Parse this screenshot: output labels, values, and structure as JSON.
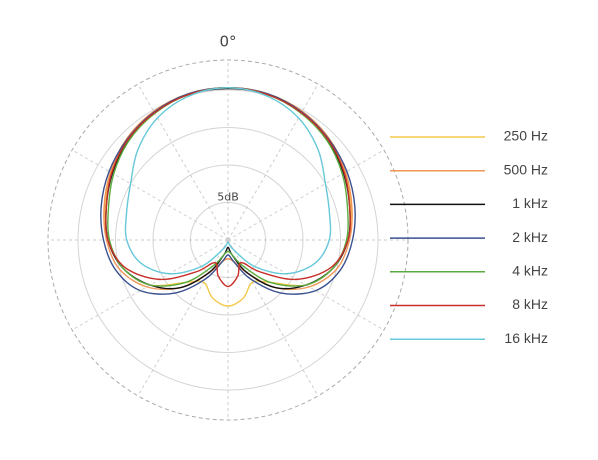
{
  "chart_data": {
    "type": "polar",
    "rlim": [
      0,
      24
    ],
    "rticks": [
      {
        "value": 5,
        "label": "5dB"
      },
      {
        "value": 10,
        "label": null
      },
      {
        "value": 15,
        "label": null
      },
      {
        "value": 20,
        "label": null
      }
    ],
    "thetaticks": [
      {
        "value": 0,
        "label": "0°"
      },
      {
        "value": 30,
        "label": null
      },
      {
        "value": 60,
        "label": null
      },
      {
        "value": 90,
        "label": null
      },
      {
        "value": 120,
        "label": null
      },
      {
        "value": 150,
        "label": null
      },
      {
        "value": 180,
        "label": null
      },
      {
        "value": 210,
        "label": null
      },
      {
        "value": 240,
        "label": null
      },
      {
        "value": 270,
        "label": null
      },
      {
        "value": 300,
        "label": null
      },
      {
        "value": 330,
        "label": null
      }
    ],
    "theta": [
      0,
      15,
      30,
      45,
      60,
      75,
      90,
      105,
      120,
      135,
      150,
      165,
      180,
      195,
      210,
      225,
      240,
      255,
      270,
      285,
      300,
      315,
      330,
      345
    ],
    "grid": true,
    "legend": "right",
    "series": [
      {
        "name": "250 Hz",
        "color": "#f2c94c",
        "values": [
          20.3,
          20.2,
          19.8,
          19.0,
          18.0,
          17.0,
          16.0,
          14.5,
          12.0,
          8.0,
          6.5,
          8.0,
          8.8,
          8.0,
          6.5,
          8.0,
          12.0,
          14.5,
          16.0,
          17.0,
          18.0,
          19.0,
          19.8,
          20.2
        ]
      },
      {
        "name": "500 Hz",
        "color": "#f0965a",
        "values": [
          20.3,
          20.2,
          19.8,
          19.1,
          18.1,
          17.1,
          16.2,
          15.0,
          12.5,
          9.0,
          5.0,
          3.0,
          2.5,
          3.0,
          5.0,
          9.0,
          12.5,
          15.0,
          16.2,
          17.1,
          18.1,
          19.1,
          19.8,
          20.2
        ]
      },
      {
        "name": "1 kHz",
        "color": "#111111",
        "values": [
          20.2,
          20.1,
          19.6,
          18.8,
          17.8,
          16.8,
          16.0,
          14.5,
          12.0,
          9.0,
          5.0,
          2.0,
          1.0,
          2.0,
          5.0,
          9.0,
          12.0,
          14.5,
          16.0,
          16.8,
          17.8,
          18.8,
          19.6,
          20.1
        ]
      },
      {
        "name": "2 kHz",
        "color": "#3a4f8f",
        "values": [
          20.3,
          20.2,
          19.7,
          19.0,
          18.3,
          17.5,
          16.6,
          15.5,
          13.5,
          10.0,
          6.0,
          3.0,
          2.0,
          3.0,
          6.0,
          10.0,
          13.5,
          15.5,
          16.6,
          17.5,
          18.3,
          19.0,
          19.7,
          20.2
        ]
      },
      {
        "name": "4 kHz",
        "color": "#5aab3e",
        "values": [
          20.3,
          20.1,
          19.5,
          18.7,
          17.6,
          16.5,
          15.8,
          14.5,
          12.0,
          8.0,
          4.0,
          2.0,
          1.5,
          2.0,
          4.0,
          8.0,
          12.0,
          14.5,
          15.8,
          16.5,
          17.6,
          18.7,
          19.5,
          20.1
        ]
      },
      {
        "name": "8 kHz",
        "color": "#c8302a",
        "values": [
          20.3,
          20.1,
          19.6,
          18.9,
          17.9,
          16.8,
          16.0,
          14.2,
          10.5,
          6.0,
          3.5,
          5.0,
          6.2,
          5.0,
          3.5,
          6.0,
          10.5,
          14.2,
          16.0,
          16.8,
          17.9,
          18.9,
          19.6,
          20.1
        ]
      },
      {
        "name": "16 kHz",
        "color": "#66c8d8",
        "values": [
          20.3,
          19.9,
          18.8,
          17.0,
          15.0,
          14.0,
          13.5,
          12.0,
          9.0,
          5.0,
          1.5,
          0.5,
          0.3,
          0.5,
          1.5,
          5.0,
          9.0,
          12.0,
          13.5,
          14.0,
          15.0,
          17.0,
          18.8,
          19.9
        ]
      }
    ]
  }
}
